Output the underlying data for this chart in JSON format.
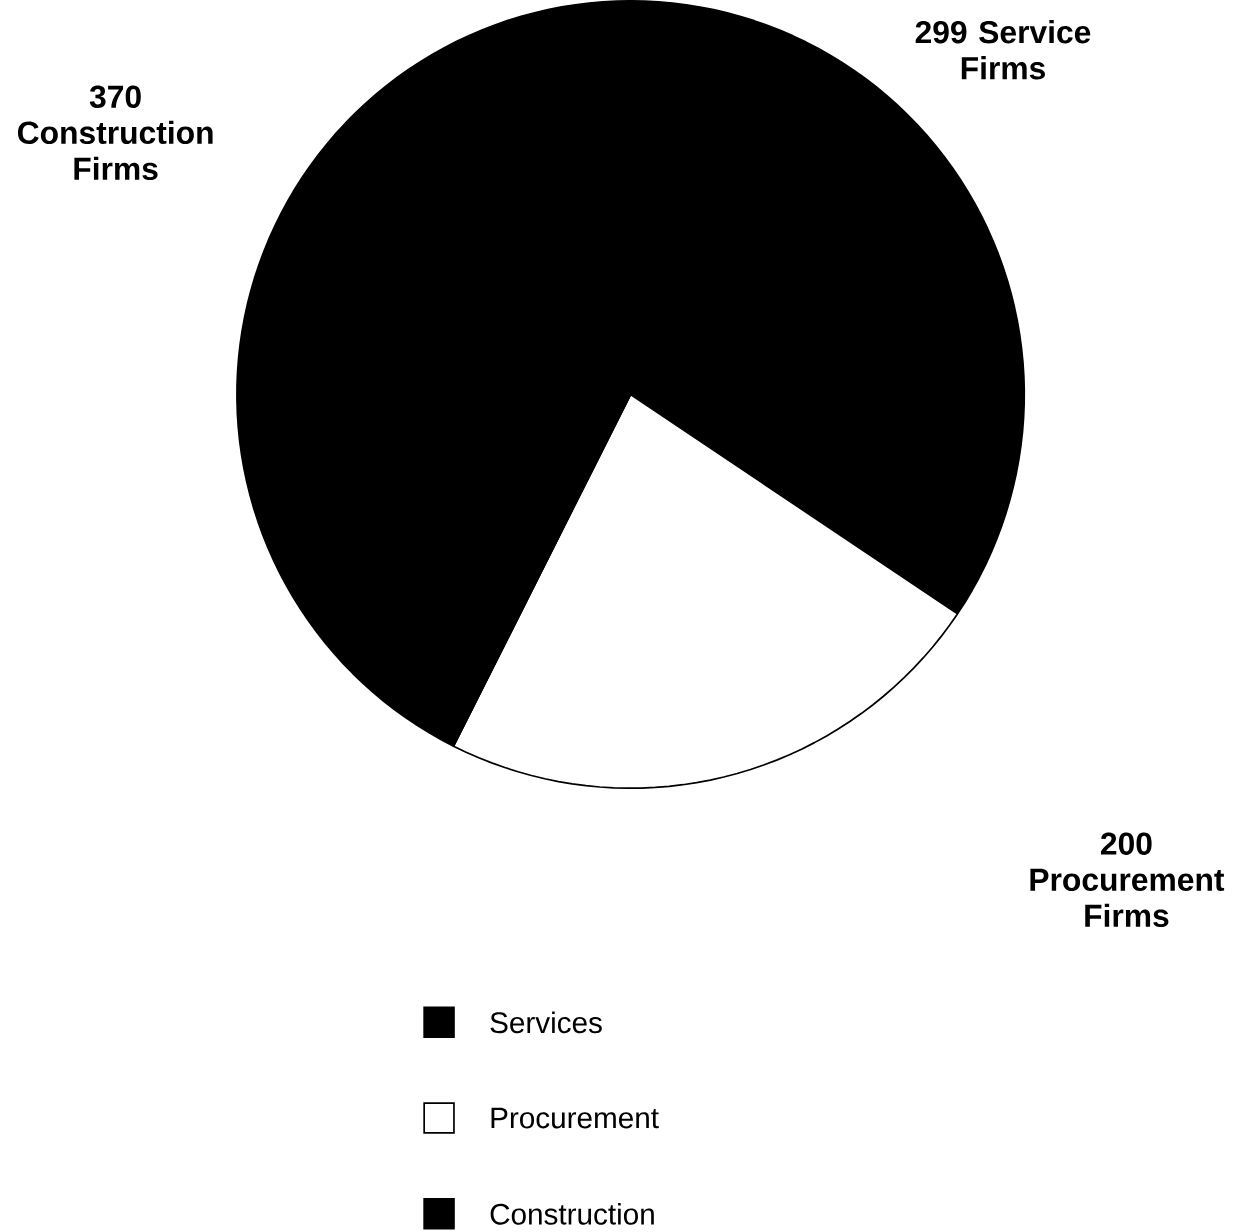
{
  "chart_data": {
    "type": "pie",
    "categories": [
      "Services",
      "Procurement",
      "Construction"
    ],
    "values": [
      299,
      200,
      370
    ],
    "colors": [
      "#000000",
      "#ffffff",
      "#000000"
    ],
    "value_labels": [
      "299 Service Firms",
      "200 Procurement Firms",
      "370 Construction Firms"
    ],
    "legend": "bottom"
  }
}
